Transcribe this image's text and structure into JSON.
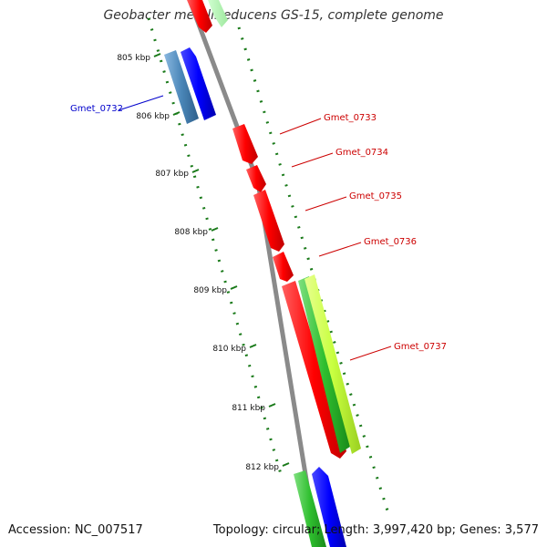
{
  "title": "Geobacter metallireducens GS-15, complete genome",
  "accession": "Accession: NC_007517",
  "topology_info": "Topology: circular; Length: 3,997,420 bp; Genes: 3,577",
  "colors": {
    "backbone": "#8a8a8a",
    "tick": "#1a7a1a",
    "red_gene": "#ff0000",
    "blue_gene": "#0000ff",
    "steelblue_gene": "#4a86b8",
    "green_gene": "#2fbf2f",
    "lime_gene": "#c8ff40",
    "label_red": "#cc0000",
    "label_blue": "#0000cc"
  },
  "scale_labels": [
    "805 kbp",
    "806 kbp",
    "807 kbp",
    "808 kbp",
    "809 kbp",
    "810 kbp",
    "811 kbp",
    "812 kbp"
  ],
  "gene_labels": [
    {
      "name": "Gmet_0732",
      "color": "label_blue"
    },
    {
      "name": "Gmet_0733",
      "color": "label_red"
    },
    {
      "name": "Gmet_0734",
      "color": "label_red"
    },
    {
      "name": "Gmet_0735",
      "color": "label_red"
    },
    {
      "name": "Gmet_0736",
      "color": "label_red"
    },
    {
      "name": "Gmet_0737",
      "color": "label_red"
    }
  ]
}
